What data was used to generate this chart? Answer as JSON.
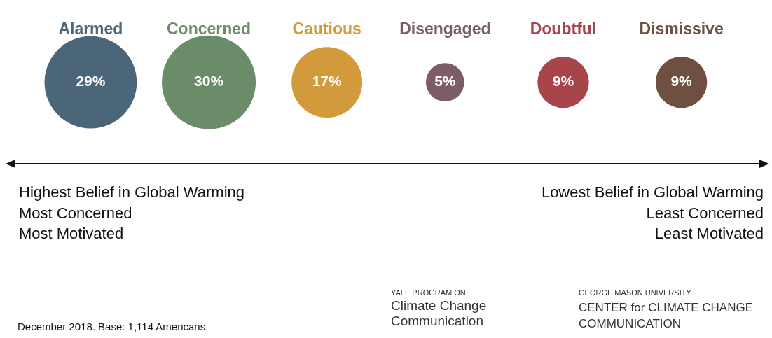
{
  "chart_data": {
    "type": "other",
    "categories": [
      "Alarmed",
      "Concerned",
      "Cautious",
      "Disengaged",
      "Doubtful",
      "Dismissive"
    ],
    "values": [
      29,
      30,
      17,
      5,
      9,
      9
    ],
    "value_labels": [
      "29%",
      "30%",
      "17%",
      "5%",
      "9%",
      "9%"
    ],
    "colors": [
      "#4b6579",
      "#6b8c69",
      "#d29a3b",
      "#7b5c67",
      "#a8454b",
      "#6e5040"
    ],
    "annotations": [
      "Highest Belief in Global Warming",
      "Most Concerned",
      "Most Motivated",
      "Lowest Belief in Global Warming",
      "Least Concerned",
      "Least Motivated",
      "December 2018. Base: 1,114 Americans.",
      "YALE PROGRAM ON",
      "Climate Change",
      "Communication",
      "GEORGE MASON UNIVERSITY",
      "CENTER for CLIMATE CHANGE",
      "COMMUNICATION"
    ]
  }
}
